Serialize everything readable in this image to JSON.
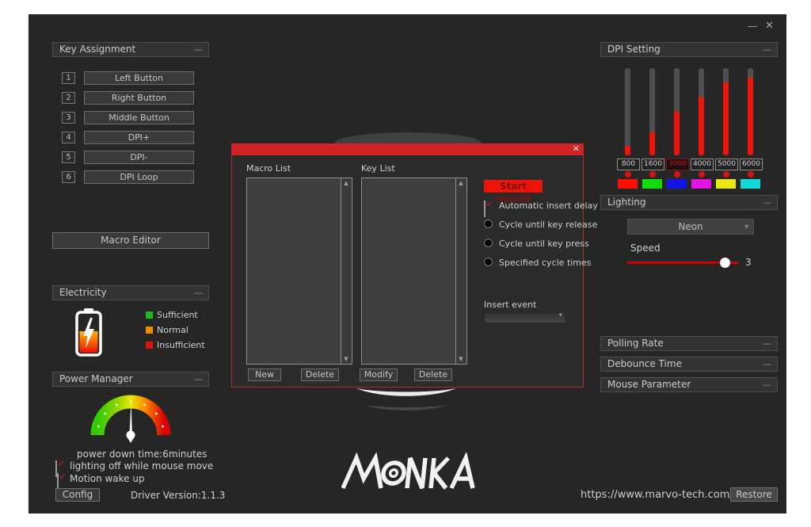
{
  "ui": {
    "dash": "—",
    "check": "✓",
    "scroll_up": "▲",
    "scroll_down": "▼",
    "dropdown_arrow": "▾",
    "minimize": "—",
    "close": "✕",
    "accent_red": "#ee1408"
  },
  "window_controls": {
    "minimize": "—",
    "close": "✕"
  },
  "key_assignment": {
    "title": "Key Assignment",
    "buttons": [
      {
        "num": "1",
        "label": "Left Button"
      },
      {
        "num": "2",
        "label": "Right Button"
      },
      {
        "num": "3",
        "label": "Middle Button"
      },
      {
        "num": "4",
        "label": "DPI+"
      },
      {
        "num": "5",
        "label": "DPI-"
      },
      {
        "num": "6",
        "label": "DPI Loop"
      }
    ]
  },
  "macro_editor_label": "Macro Editor",
  "electricity": {
    "title": "Electricity",
    "legend": [
      {
        "label": "Sufficient",
        "color": "#1db91d"
      },
      {
        "label": "Normal",
        "color": "#f08a00"
      },
      {
        "label": "Insufficient",
        "color": "#e01111"
      }
    ]
  },
  "power_manager": {
    "title": "Power Manager",
    "power_down_text": "power down time:6minutes",
    "checkboxes": [
      {
        "label": "lighting off while mouse move",
        "checked": true
      },
      {
        "label": "Motion wake up",
        "checked": true
      }
    ]
  },
  "footer": {
    "config_label": "Config",
    "driver_version": "Driver Version:1.1.3",
    "website": "https://www.marvo-tech.com/",
    "restore_label": "Restore",
    "brand": "MONKA"
  },
  "macro_dialog": {
    "close_icon": "✕",
    "macro_list_label": "Macro List",
    "key_list_label": "Key List",
    "start_record_label": "Start record",
    "auto_insert_delay": {
      "label": "Automatic insert delay",
      "checked": true
    },
    "radios": [
      {
        "label": "Cycle until key release",
        "selected": false
      },
      {
        "label": "Cycle until key press",
        "selected": false
      },
      {
        "label": "Specified cycle times",
        "selected": false
      }
    ],
    "insert_event_label": "Insert event",
    "insert_event_value": "",
    "buttons": [
      "New",
      "Delete",
      "Modify",
      "Delete"
    ]
  },
  "dpi_setting": {
    "title": "DPI Setting",
    "sliders": [
      {
        "value": "800",
        "fill_pct": 11,
        "swatch": "#ff0d00",
        "active": false
      },
      {
        "value": "1600",
        "fill_pct": 26,
        "swatch": "#10dc10",
        "active": false
      },
      {
        "value": "3000",
        "fill_pct": 50,
        "swatch": "#1414e6",
        "active": true
      },
      {
        "value": "4000",
        "fill_pct": 67,
        "swatch": "#e414e4",
        "active": false
      },
      {
        "value": "5000",
        "fill_pct": 84,
        "swatch": "#e8e814",
        "active": false
      },
      {
        "value": "6000",
        "fill_pct": 89,
        "swatch": "#14d8d8",
        "active": false
      }
    ]
  },
  "lighting": {
    "title": "Lighting",
    "mode": "Neon",
    "speed_label": "Speed",
    "speed_value": "3",
    "speed_pct": 88
  },
  "side_panels": [
    {
      "title": "Polling Rate"
    },
    {
      "title": "Debounce Time"
    },
    {
      "title": "Mouse Parameter"
    }
  ]
}
